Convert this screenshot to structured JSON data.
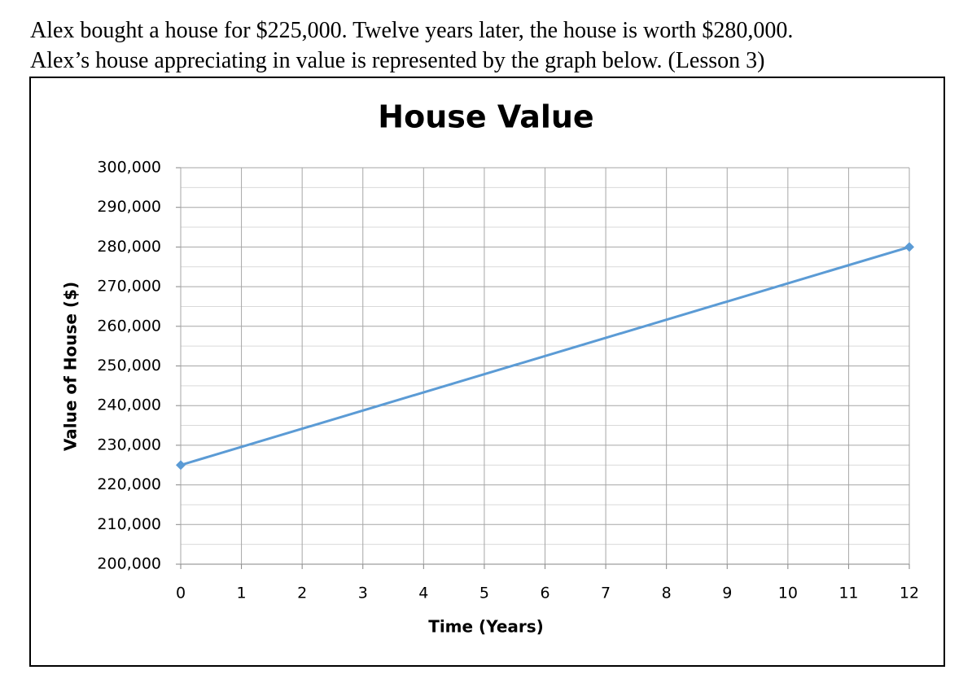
{
  "question": [
    "Alex bought a house for $225,000.  Twelve years later, the house is worth $280,000.",
    "Alex’s house appreciating in value is represented by the graph below.  (Lesson 3)"
  ],
  "chart_data": {
    "type": "line",
    "title": "House Value",
    "x_label": "Time (Years)",
    "y_label": "Value of House ($)",
    "x": [
      0,
      12
    ],
    "series": [
      {
        "name": "House Value",
        "color": "#5b9bd5",
        "values": [
          225000,
          280000
        ]
      }
    ],
    "xlim": [
      0,
      12
    ],
    "xticks": [
      0,
      1,
      2,
      3,
      4,
      5,
      6,
      7,
      8,
      9,
      10,
      11,
      12
    ],
    "ylim": [
      200000,
      300000
    ],
    "yticks": [
      {
        "value": 200000,
        "label": "200,000"
      },
      {
        "value": 210000,
        "label": "210,000"
      },
      {
        "value": 220000,
        "label": "220,000"
      },
      {
        "value": 230000,
        "label": "230,000"
      },
      {
        "value": 240000,
        "label": "240,000"
      },
      {
        "value": 250000,
        "label": "250,000"
      },
      {
        "value": 260000,
        "label": "260,000"
      },
      {
        "value": 270000,
        "label": "270,000"
      },
      {
        "value": 280000,
        "label": "280,000"
      },
      {
        "value": 290000,
        "label": "290,000"
      },
      {
        "value": 300000,
        "label": "300,000"
      }
    ],
    "grid": true,
    "marker": "diamond"
  }
}
